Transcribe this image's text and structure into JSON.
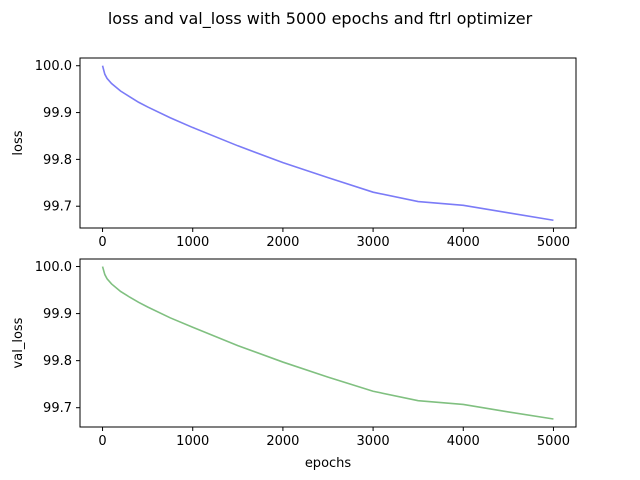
{
  "figure": {
    "title": "loss and val_loss with 5000 epochs and ftrl optimizer"
  },
  "chart_data": [
    {
      "type": "line",
      "title": "",
      "xlabel": "",
      "ylabel": "loss",
      "xlim": [
        -250,
        5250
      ],
      "ylim": [
        99.6535,
        100.0165
      ],
      "x_ticks": [
        0,
        1000,
        2000,
        3000,
        4000,
        5000
      ],
      "y_ticks": [
        99.7,
        99.8,
        99.9,
        100.0
      ],
      "x_tick_labels": [
        "0",
        "1000",
        "2000",
        "3000",
        "4000",
        "5000"
      ],
      "y_tick_labels": [
        "99.7",
        "99.8",
        "99.9",
        "100.0"
      ],
      "grid": false,
      "series": [
        {
          "color": "#7b7bf7",
          "x": [
            0,
            25,
            50,
            100,
            200,
            300,
            400,
            500,
            750,
            1000,
            1500,
            2000,
            2500,
            3000,
            3500,
            4000,
            4500,
            5000
          ],
          "y": [
            100.0,
            99.982,
            99.973,
            99.962,
            99.946,
            99.934,
            99.922,
            99.912,
            99.889,
            99.868,
            99.829,
            99.793,
            99.761,
            99.73,
            99.71,
            99.702,
            99.686,
            99.67
          ]
        }
      ]
    },
    {
      "type": "line",
      "title": "",
      "xlabel": "epochs",
      "ylabel": "val_loss",
      "xlim": [
        -250,
        5250
      ],
      "ylim": [
        99.659,
        100.016
      ],
      "x_ticks": [
        0,
        1000,
        2000,
        3000,
        4000,
        5000
      ],
      "y_ticks": [
        99.7,
        99.8,
        99.9,
        100.0
      ],
      "x_tick_labels": [
        "0",
        "1000",
        "2000",
        "3000",
        "4000",
        "5000"
      ],
      "y_tick_labels": [
        "99.7",
        "99.8",
        "99.9",
        "100.0"
      ],
      "grid": false,
      "series": [
        {
          "color": "#80c080",
          "x": [
            0,
            25,
            50,
            100,
            200,
            300,
            400,
            500,
            750,
            1000,
            1500,
            2000,
            2500,
            3000,
            3500,
            4000,
            4500,
            5000
          ],
          "y": [
            100.0,
            99.983,
            99.974,
            99.963,
            99.947,
            99.935,
            99.924,
            99.914,
            99.891,
            99.871,
            99.832,
            99.797,
            99.765,
            99.735,
            99.715,
            99.707,
            99.691,
            99.676
          ]
        }
      ]
    }
  ]
}
